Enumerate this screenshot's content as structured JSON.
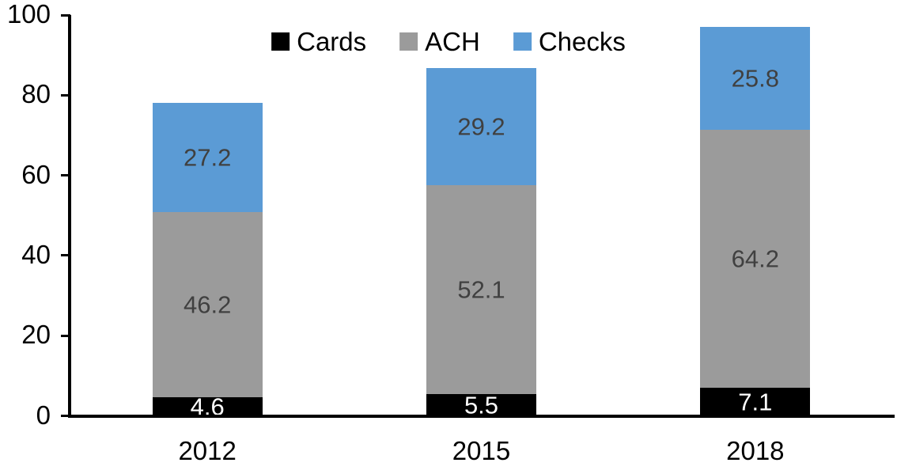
{
  "chart_data": {
    "type": "bar",
    "stacked": true,
    "title": "",
    "xlabel": "",
    "ylabel": "",
    "categories": [
      "2012",
      "2015",
      "2018"
    ],
    "series": [
      {
        "name": "Cards",
        "color": "#000000",
        "label_color": "#ffffff",
        "values": [
          4.6,
          5.5,
          7.1
        ]
      },
      {
        "name": "ACH",
        "color": "#9b9b9b",
        "label_color": "#404040",
        "values": [
          46.2,
          52.1,
          64.2
        ]
      },
      {
        "name": "Checks",
        "color": "#5b9bd5",
        "label_color": "#404040",
        "values": [
          27.2,
          29.2,
          25.8
        ]
      }
    ],
    "ylim": [
      0,
      100
    ],
    "yticks": [
      0,
      20,
      40,
      60,
      80,
      100
    ],
    "grid": false,
    "legend_position": "top",
    "axis_color": "#000000",
    "background_color": "#ffffff"
  }
}
